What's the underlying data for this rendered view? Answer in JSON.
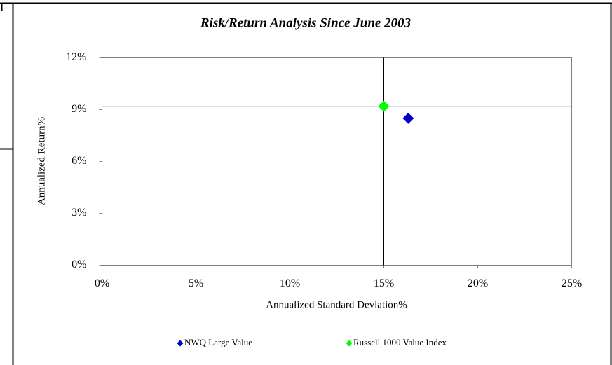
{
  "chart_data": {
    "type": "scatter",
    "title": "Risk/Return Analysis Since June 2003",
    "x_label": "Annualized Standard Deviation%",
    "y_label": "Annualized Return%",
    "xlim": [
      0,
      25
    ],
    "ylim": [
      0,
      12
    ],
    "xticks": [
      {
        "value": 0,
        "label": "0%"
      },
      {
        "value": 5,
        "label": "5%"
      },
      {
        "value": 10,
        "label": "10%"
      },
      {
        "value": 15,
        "label": "15%"
      },
      {
        "value": 20,
        "label": "20%"
      },
      {
        "value": 25,
        "label": "25%"
      }
    ],
    "yticks": [
      {
        "value": 0,
        "label": "0%"
      },
      {
        "value": 3,
        "label": "3%"
      },
      {
        "value": 6,
        "label": "6%"
      },
      {
        "value": 9,
        "label": "9%"
      },
      {
        "value": 12,
        "label": "12%"
      }
    ],
    "series": [
      {
        "name": "NWQ Large Value",
        "color": "#0000cc",
        "x": [
          16.3
        ],
        "values": [
          8.5
        ]
      },
      {
        "name": "Russell 1000 Value Index",
        "color": "#00ff00",
        "x": [
          15.0
        ],
        "values": [
          9.2
        ]
      }
    ],
    "legend": "bottom"
  }
}
